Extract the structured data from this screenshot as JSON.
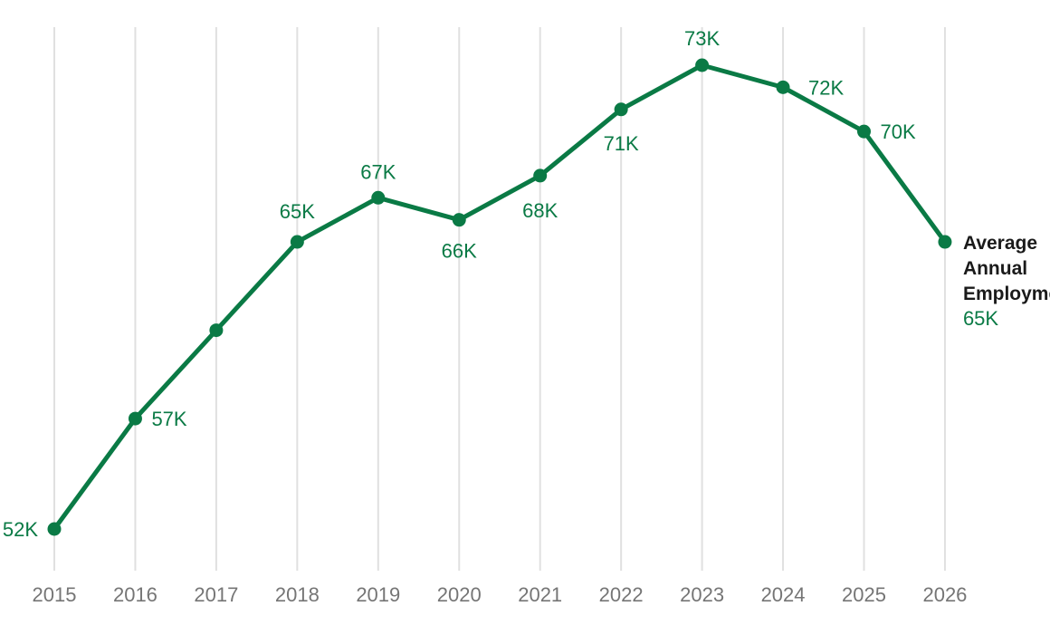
{
  "chart_data": {
    "type": "line",
    "x": [
      "2015",
      "2016",
      "2017",
      "2018",
      "2019",
      "2020",
      "2021",
      "2022",
      "2023",
      "2024",
      "2025",
      "2026"
    ],
    "series": [
      {
        "name": "Average Annual Employment",
        "values": [
          52000,
          57000,
          61000,
          65000,
          67000,
          66000,
          68000,
          71000,
          73000,
          72000,
          70000,
          65000
        ],
        "data_labels": [
          "52K",
          "57K",
          null,
          "65K",
          "67K",
          "66K",
          "68K",
          "71K",
          "73K",
          "72K",
          "70K",
          "65K"
        ],
        "color": "#0a7a45"
      }
    ],
    "end_label_lines": [
      "Average",
      "Annual",
      "Employment"
    ],
    "end_value_label": "65K",
    "ylim": [
      52000,
      73000
    ],
    "grid": "vertical",
    "legend": "none"
  },
  "colors": {
    "series": "#0a7a45",
    "grid": "#e0e0e0",
    "tick": "#757575",
    "label": "#1a1a1a"
  }
}
